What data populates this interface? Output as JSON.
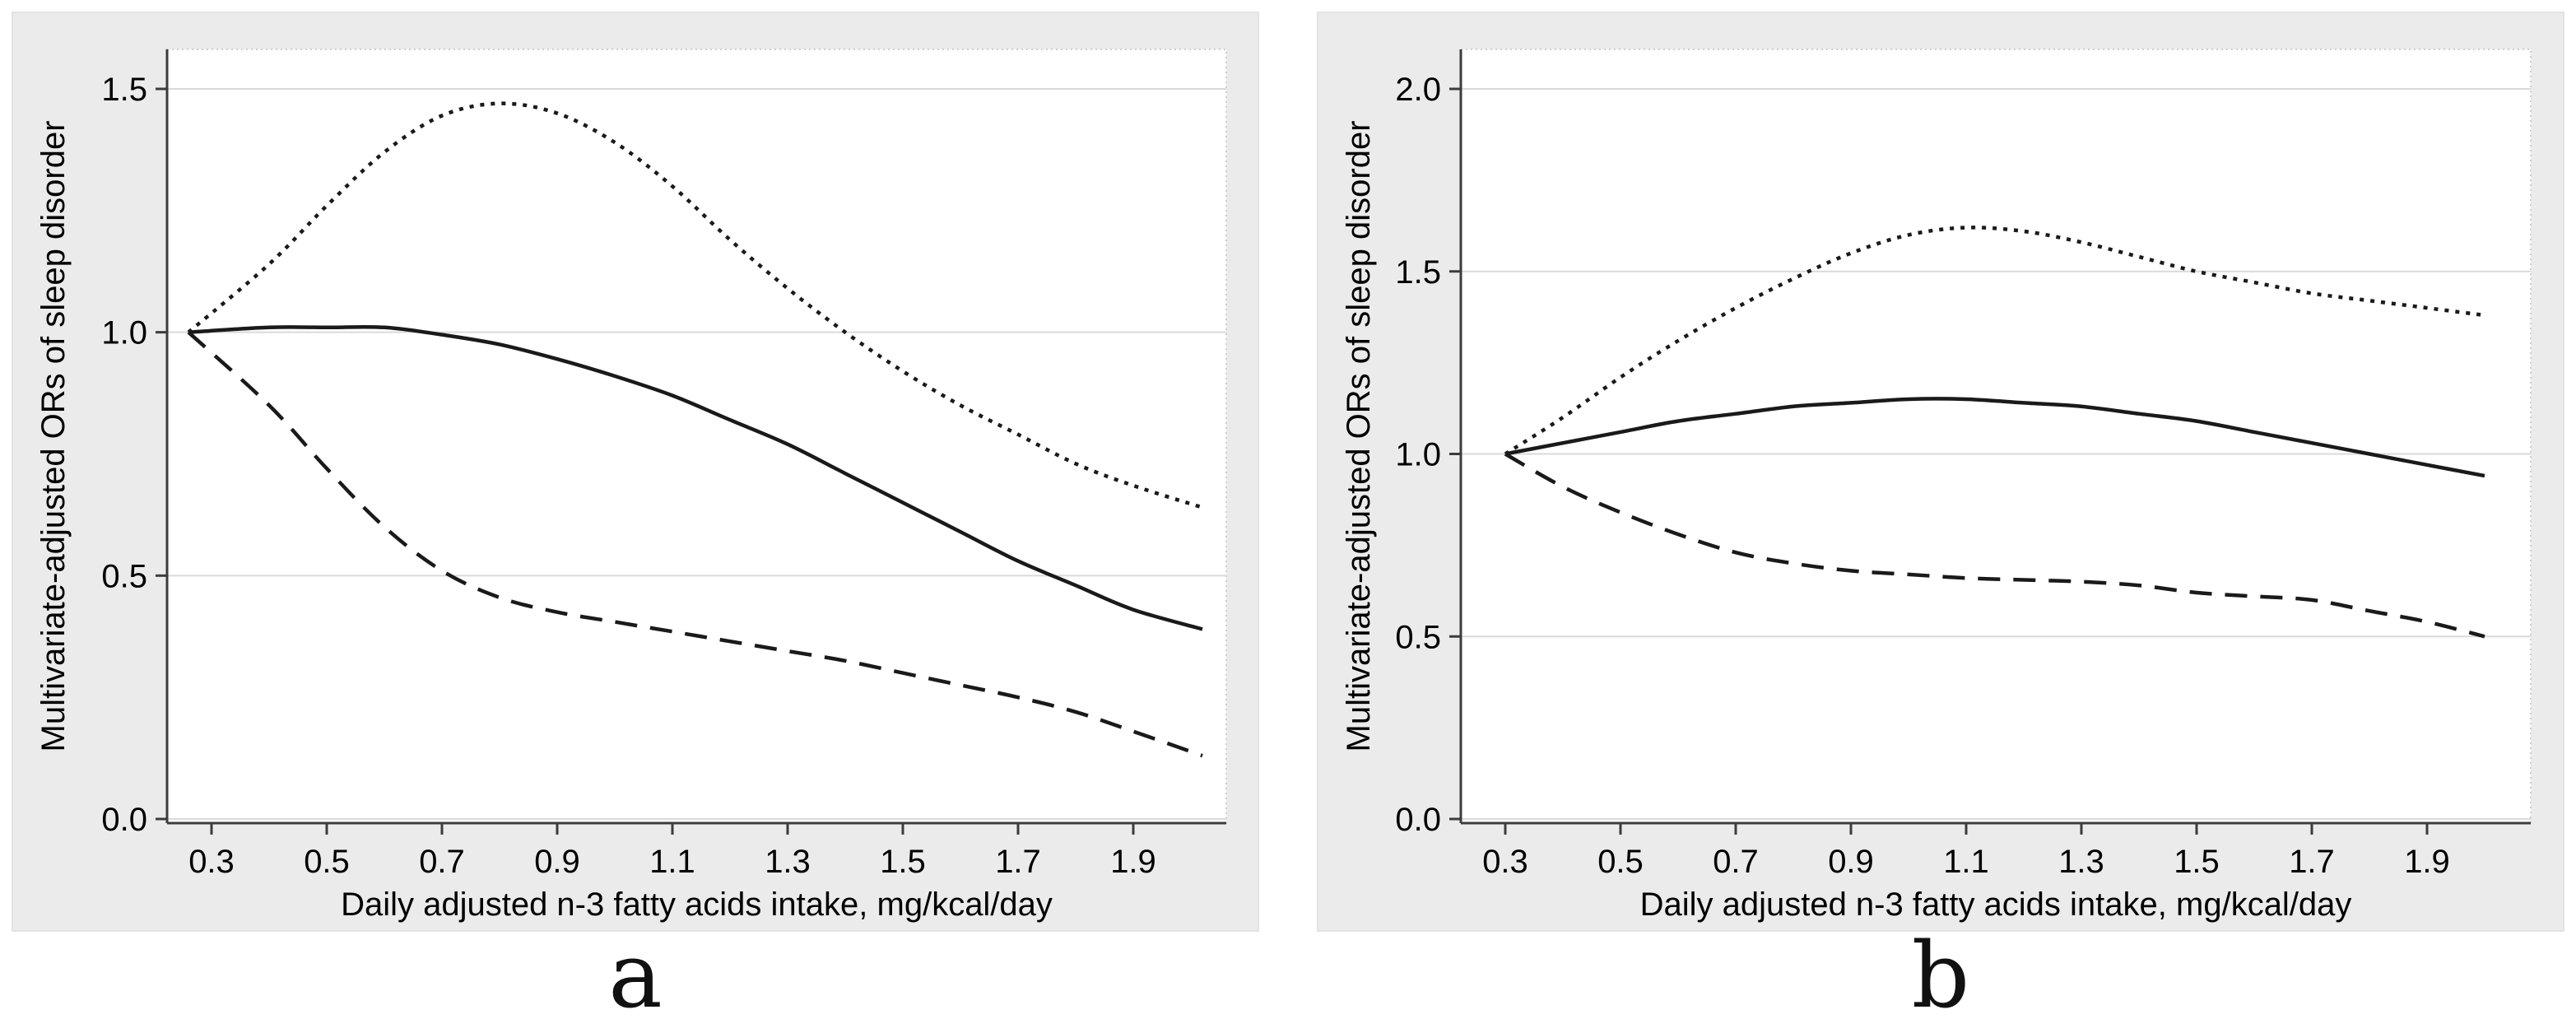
{
  "style": {
    "page_background": "#ffffff",
    "panel_background": "#ebebeb",
    "plot_background": "#ffffff",
    "plot_border_color": "#cfcfcf",
    "gridline_color": "#d9dadb",
    "axis_color": "#3c3c3c",
    "line_color": "#1a1a1a",
    "text_color": "#000000"
  },
  "chart_data": [
    {
      "type": "line",
      "panel_label": "a",
      "title": "",
      "xlabel": "Daily adjusted n-3 fatty acids intake, mg/kcal/day",
      "ylabel": "Multivariate-adjusted ORs of sleep disorder",
      "xticks": [
        0.3,
        0.5,
        0.7,
        0.9,
        1.1,
        1.3,
        1.5,
        1.7,
        1.9
      ],
      "yticks": [
        0.0,
        0.5,
        1.0,
        1.5
      ],
      "xlim": [
        0.22,
        2.06
      ],
      "ylim": [
        0,
        1.58
      ],
      "grid": "horizontal",
      "legend": "none",
      "x": [
        0.26,
        0.4,
        0.5,
        0.6,
        0.7,
        0.8,
        0.9,
        1.0,
        1.1,
        1.2,
        1.3,
        1.4,
        1.5,
        1.6,
        1.7,
        1.8,
        1.9,
        2.02
      ],
      "series": [
        {
          "name": "solid",
          "line_style": "solid",
          "values": [
            1.0,
            1.01,
            1.01,
            1.01,
            0.995,
            0.975,
            0.945,
            0.91,
            0.87,
            0.82,
            0.77,
            0.71,
            0.65,
            0.59,
            0.53,
            0.48,
            0.43,
            0.39
          ]
        },
        {
          "name": "dotted",
          "line_style": "dotted",
          "values": [
            1.0,
            1.14,
            1.26,
            1.37,
            1.445,
            1.47,
            1.45,
            1.39,
            1.3,
            1.19,
            1.09,
            1.0,
            0.92,
            0.85,
            0.79,
            0.73,
            0.685,
            0.64
          ]
        },
        {
          "name": "dashed",
          "line_style": "dashed",
          "values": [
            1.0,
            0.85,
            0.72,
            0.6,
            0.51,
            0.455,
            0.425,
            0.405,
            0.385,
            0.365,
            0.345,
            0.325,
            0.3,
            0.275,
            0.25,
            0.22,
            0.18,
            0.13
          ]
        }
      ]
    },
    {
      "type": "line",
      "panel_label": "b",
      "title": "",
      "xlabel": "Daily adjusted n-3 fatty acids intake, mg/kcal/day",
      "ylabel": "Multivariate-adjusted ORs of sleep disorder",
      "xticks": [
        0.3,
        0.5,
        0.7,
        0.9,
        1.1,
        1.3,
        1.5,
        1.7,
        1.9
      ],
      "yticks": [
        0.0,
        0.5,
        1.0,
        1.5,
        2.0
      ],
      "xlim": [
        0.22,
        2.08
      ],
      "ylim": [
        0,
        2.11
      ],
      "grid": "horizontal",
      "legend": "none",
      "x": [
        0.3,
        0.4,
        0.5,
        0.6,
        0.7,
        0.8,
        0.9,
        1.0,
        1.1,
        1.2,
        1.3,
        1.4,
        1.5,
        1.6,
        1.7,
        1.8,
        1.9,
        2.0
      ],
      "series": [
        {
          "name": "solid",
          "line_style": "solid",
          "values": [
            1.0,
            1.03,
            1.06,
            1.09,
            1.11,
            1.13,
            1.14,
            1.15,
            1.15,
            1.14,
            1.13,
            1.11,
            1.09,
            1.06,
            1.03,
            1.0,
            0.97,
            0.94
          ]
        },
        {
          "name": "dotted",
          "line_style": "dotted",
          "values": [
            1.0,
            1.1,
            1.21,
            1.31,
            1.4,
            1.48,
            1.55,
            1.6,
            1.62,
            1.61,
            1.58,
            1.54,
            1.5,
            1.47,
            1.44,
            1.42,
            1.4,
            1.38
          ]
        },
        {
          "name": "dashed",
          "line_style": "dashed",
          "values": [
            1.0,
            0.91,
            0.84,
            0.78,
            0.73,
            0.7,
            0.68,
            0.67,
            0.66,
            0.655,
            0.65,
            0.64,
            0.62,
            0.61,
            0.6,
            0.57,
            0.54,
            0.5
          ]
        }
      ]
    }
  ]
}
